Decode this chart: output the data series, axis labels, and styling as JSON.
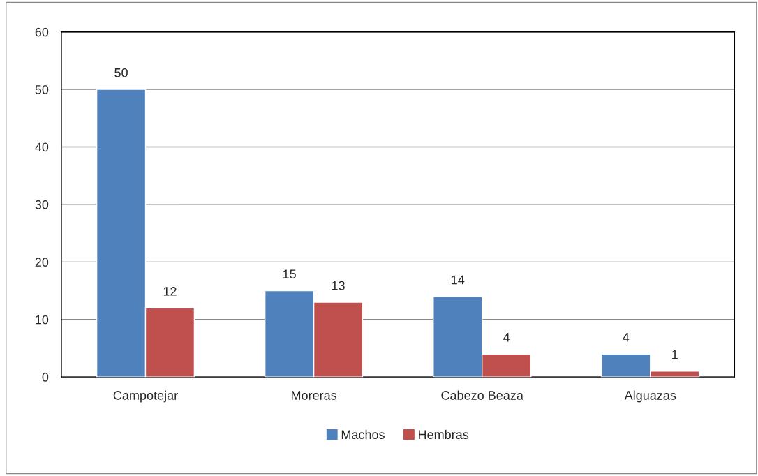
{
  "chart_data": {
    "type": "bar",
    "categories": [
      "Campotejar",
      "Moreras",
      "Cabezo Beaza",
      "Alguazas"
    ],
    "series": [
      {
        "name": "Machos",
        "color": "#4f81bd",
        "values": [
          50,
          15,
          14,
          4
        ]
      },
      {
        "name": "Hembras",
        "color": "#c0504d",
        "values": [
          12,
          13,
          4,
          1
        ]
      }
    ],
    "ylim": [
      0,
      60
    ],
    "yticks": [
      0,
      10,
      20,
      30,
      40,
      50,
      60
    ],
    "grid": "y",
    "legend": "bottom",
    "data_labels": true
  }
}
